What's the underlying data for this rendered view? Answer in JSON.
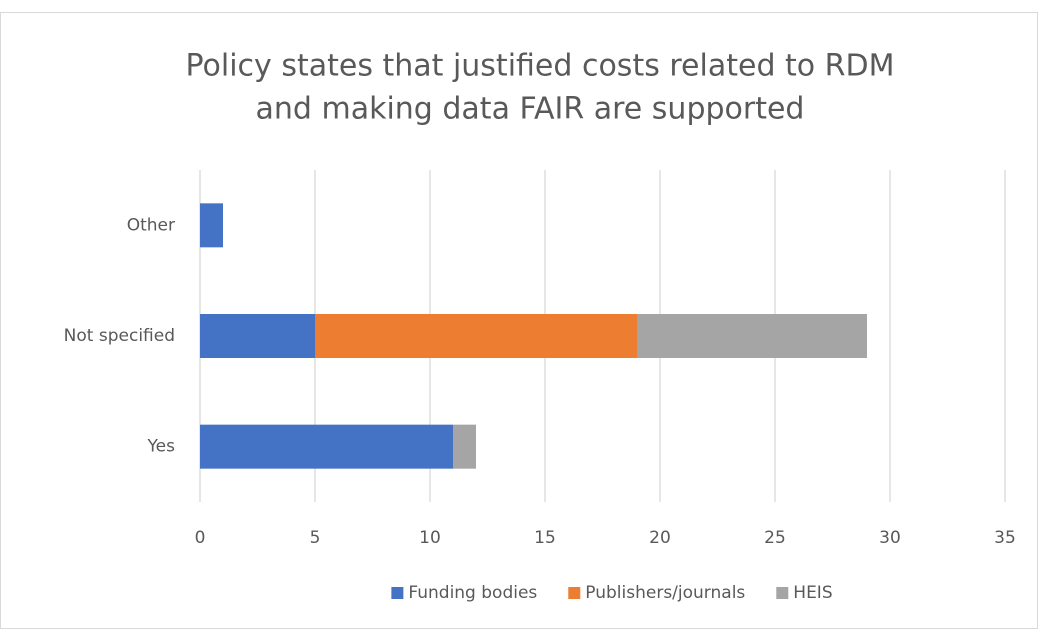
{
  "chart_data": {
    "type": "stacked_barh",
    "title": [
      "Policy states that justified costs related to RDM",
      "and making data FAIR are supported"
    ],
    "categories": [
      "Yes",
      "Not specified",
      "Other"
    ],
    "series": [
      {
        "name": "Funding bodies",
        "color": "#4472c4",
        "values": [
          11,
          5,
          1
        ]
      },
      {
        "name": "Publishers/journals",
        "color": "#ed7d31",
        "values": [
          0,
          14,
          0
        ]
      },
      {
        "name": "HEIS",
        "color": "#a5a5a5",
        "values": [
          1,
          10,
          0
        ]
      }
    ],
    "xlim": [
      0,
      35
    ],
    "xticks": [
      0,
      5,
      10,
      15,
      20,
      25,
      30,
      35
    ],
    "grid": true,
    "legend": "bottom"
  }
}
